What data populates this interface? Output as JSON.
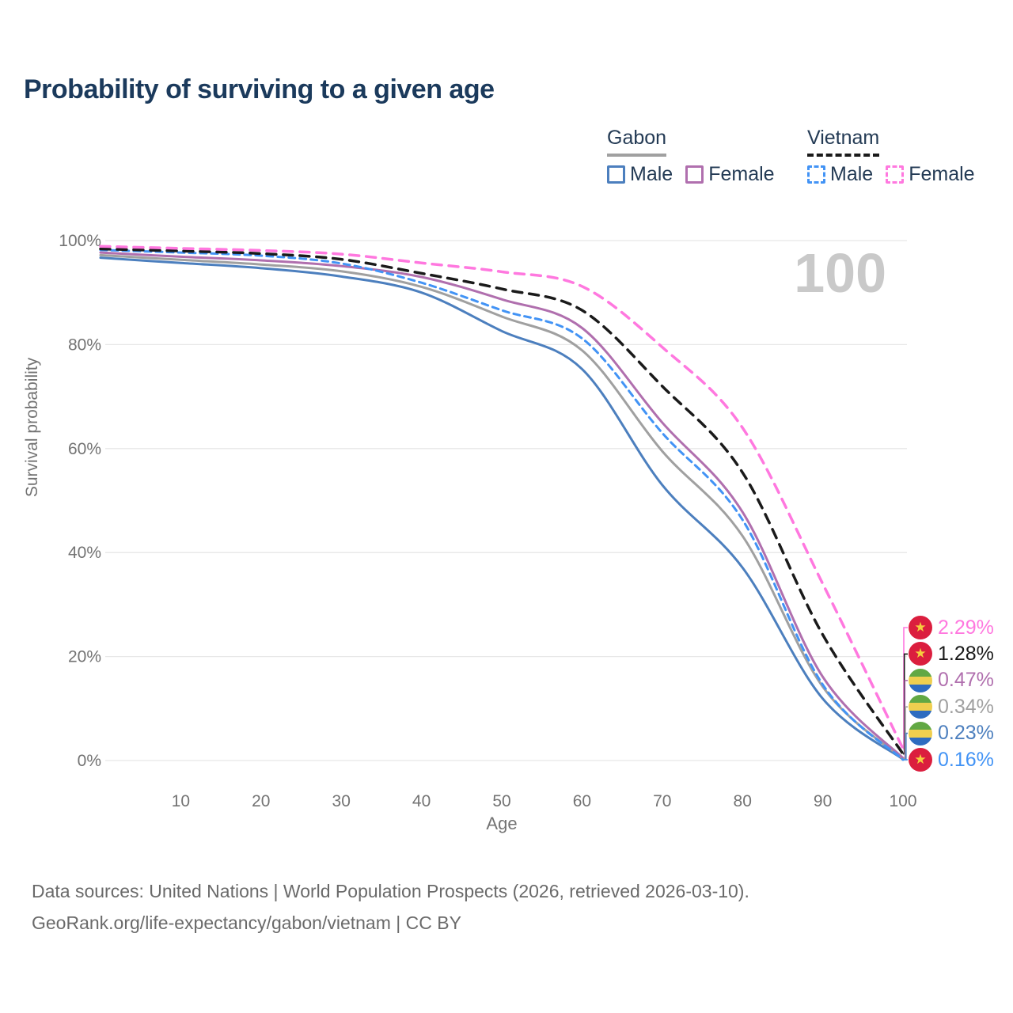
{
  "title": "Probability of surviving to a given age",
  "watermark": "100",
  "legend": {
    "gabon": {
      "label": "Gabon",
      "male": "Male",
      "female": "Female"
    },
    "vietnam": {
      "label": "Vietnam",
      "male": "Male",
      "female": "Female"
    }
  },
  "chart_data": {
    "type": "line",
    "title": "Probability of surviving to a given age",
    "xlabel": "Age",
    "ylabel": "Survival probability",
    "xlim": [
      0,
      100
    ],
    "ylim": [
      0,
      100
    ],
    "grid": true,
    "legend_position": "top-right",
    "x": [
      0,
      10,
      20,
      30,
      40,
      50,
      60,
      70,
      80,
      90,
      100
    ],
    "x_ticks": [
      10,
      20,
      30,
      40,
      50,
      60,
      70,
      80,
      90,
      100
    ],
    "y_ticks": [
      {
        "value": 0,
        "label": "0%"
      },
      {
        "value": 20,
        "label": "20%"
      },
      {
        "value": 40,
        "label": "40%"
      },
      {
        "value": 60,
        "label": "60%"
      },
      {
        "value": 80,
        "label": "80%"
      },
      {
        "value": 100,
        "label": "100%"
      }
    ],
    "series": [
      {
        "id": "vietnam-female",
        "name": "Vietnam Female",
        "country": "Vietnam",
        "sex": "Female",
        "color": "#ff78df",
        "style": "dashed",
        "dash": "12 9",
        "width": 3.5,
        "flag": "vietnam",
        "end_label": "2.29%",
        "values": [
          98.9,
          98.5,
          98.1,
          97.4,
          95.7,
          94.0,
          91.2,
          79.5,
          64.0,
          34.0,
          2.29
        ]
      },
      {
        "id": "vietnam-total",
        "name": "Vietnam",
        "country": "Vietnam",
        "sex": "Both",
        "color": "#1a1a1a",
        "style": "dashed",
        "dash": "12 9",
        "width": 3.5,
        "flag": "vietnam",
        "end_label": "1.28%",
        "values": [
          98.4,
          98.0,
          97.5,
          96.4,
          93.7,
          90.7,
          86.6,
          72.0,
          55.4,
          24.2,
          1.28
        ]
      },
      {
        "id": "gabon-female",
        "name": "Gabon Female",
        "country": "Gabon",
        "sex": "Female",
        "color": "#b06fae",
        "style": "solid",
        "dash": "",
        "width": 3,
        "flag": "gabon",
        "end_label": "0.47%",
        "values": [
          97.7,
          96.9,
          96.2,
          95.1,
          93.0,
          88.7,
          83.2,
          65.0,
          47.8,
          16.1,
          0.47
        ]
      },
      {
        "id": "gabon-total",
        "name": "Gabon",
        "country": "Gabon",
        "sex": "Both",
        "color": "#a0a0a0",
        "style": "solid",
        "dash": "",
        "width": 3,
        "flag": "gabon",
        "end_label": "0.34%",
        "values": [
          97.2,
          96.3,
          95.4,
          94.1,
          91.1,
          85.4,
          78.9,
          59.5,
          43.2,
          14.2,
          0.34
        ]
      },
      {
        "id": "gabon-male",
        "name": "Gabon Male",
        "country": "Gabon",
        "sex": "Male",
        "color": "#4c7fbe",
        "style": "solid",
        "dash": "",
        "width": 3,
        "flag": "gabon",
        "end_label": "0.23%",
        "values": [
          96.7,
          95.7,
          94.7,
          93.1,
          90.0,
          82.6,
          75.3,
          53.0,
          37.1,
          11.9,
          0.23
        ]
      },
      {
        "id": "vietnam-male",
        "name": "Vietnam Male",
        "country": "Vietnam",
        "sex": "Male",
        "color": "#4293f5",
        "style": "dashed",
        "dash": "8 6",
        "width": 3,
        "flag": "vietnam",
        "end_label": "0.16%",
        "values": [
          98.2,
          97.7,
          97.1,
          95.6,
          91.9,
          86.6,
          81.2,
          63.0,
          46.3,
          14.6,
          0.16
        ]
      }
    ]
  },
  "flag_colors": {
    "vietnam": {
      "bg": "#db1e3e",
      "star": "#f5ce3e",
      "star_glyph": "★"
    },
    "gabon": {
      "top": "#62a844",
      "middle": "#efcf4f",
      "bottom": "#2e6cc0"
    }
  },
  "colors": {
    "title": "#1b3a5c",
    "axis_text": "#737373",
    "gridline": "#e7e7e7",
    "watermark": "#c9c9c9",
    "legend_text": "#243b55"
  },
  "footer": {
    "line1": "Data sources: United Nations | World Population Prospects (2026, retrieved 2026-03-10).",
    "line2": "GeoRank.org/life-expectancy/gabon/vietnam | CC BY"
  }
}
